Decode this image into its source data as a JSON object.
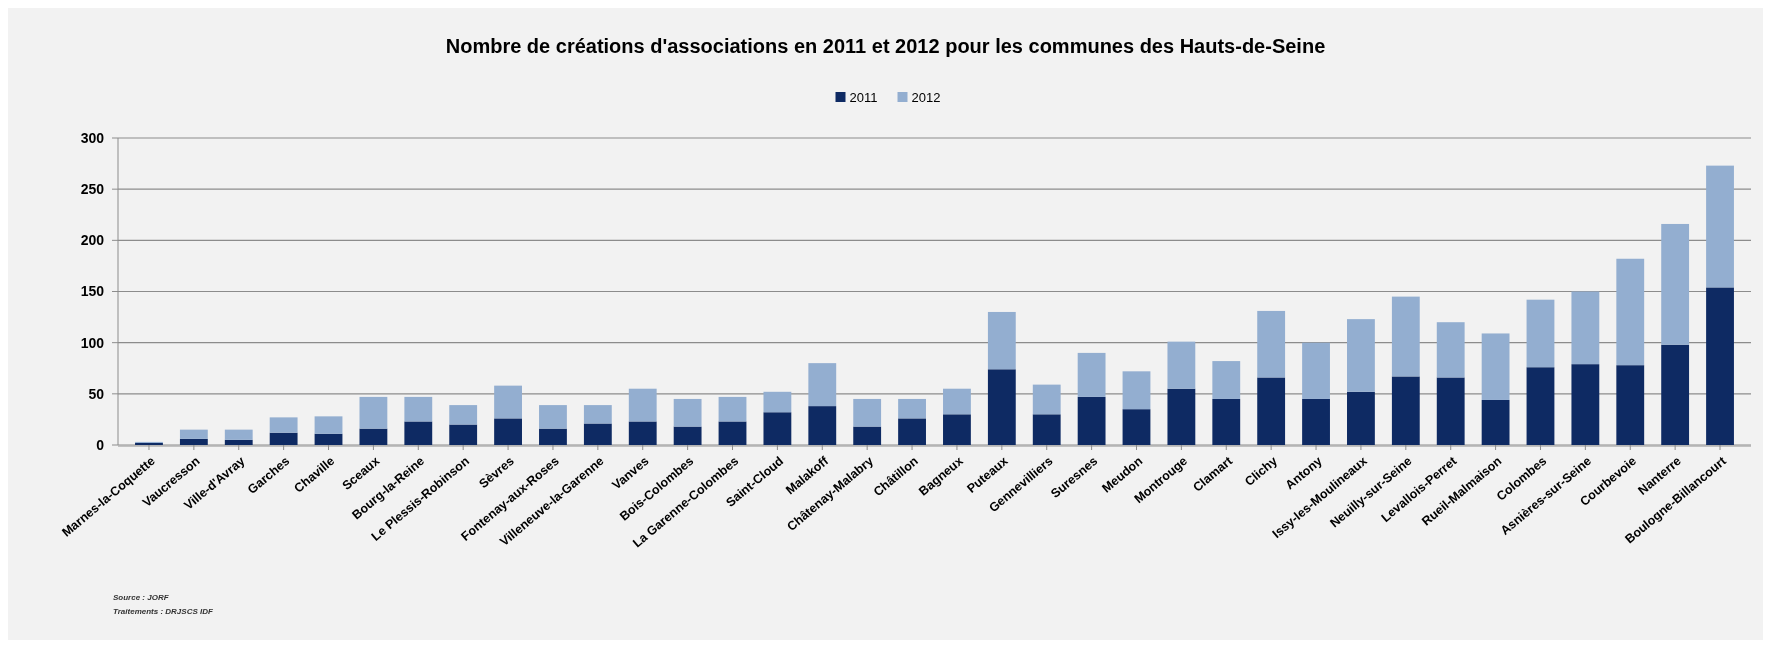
{
  "chart_data": {
    "type": "bar",
    "stacked": true,
    "title": "Nombre de créations d'associations en 2011 et 2012 pour les communes  des Hauts-de-Seine",
    "categories": [
      "Marnes-la-Coquette",
      "Vaucresson",
      "Ville-d'Avray",
      "Garches",
      "Chaville",
      "Sceaux",
      "Bourg-la-Reine",
      "Le Plessis-Robinson",
      "Sèvres",
      "Fontenay-aux-Roses",
      "Villeneuve-la-Garenne",
      "Vanves",
      "Bois-Colombes",
      "La Garenne-Colombes",
      "Saint-Cloud",
      "Malakoff",
      "Châtenay-Malabry",
      "Châtillon",
      "Bagneux",
      "Puteaux",
      "Gennevilliers",
      "Suresnes",
      "Meudon",
      "Montrouge",
      "Clamart",
      "Clichy",
      "Antony",
      "Issy-les-Moulineaux",
      "Neuilly-sur-Seine",
      "Levallois-Perret",
      "Rueil-Malmaison",
      "Colombes",
      "Asnières-sur-Seine",
      "Courbevoie",
      "Nanterre",
      "Boulogne-Billancourt"
    ],
    "series": [
      {
        "name": "2011",
        "color": "#0e2a63",
        "values": [
          2,
          6,
          5,
          12,
          11,
          16,
          23,
          20,
          26,
          16,
          21,
          23,
          18,
          23,
          32,
          38,
          18,
          26,
          30,
          74,
          30,
          47,
          35,
          55,
          45,
          66,
          45,
          52,
          67,
          66,
          44,
          76,
          79,
          78,
          98,
          154
        ]
      },
      {
        "name": "2012",
        "color": "#93aed0",
        "values": [
          1,
          9,
          10,
          15,
          17,
          31,
          24,
          19,
          32,
          23,
          18,
          32,
          27,
          24,
          20,
          42,
          27,
          19,
          25,
          56,
          29,
          43,
          37,
          46,
          37,
          65,
          55,
          71,
          78,
          54,
          65,
          66,
          71,
          104,
          118,
          119
        ]
      }
    ],
    "ylim": [
      0,
      300
    ],
    "yticks": [
      0,
      50,
      100,
      150,
      200,
      250,
      300
    ],
    "grid": "y",
    "legend": "top",
    "annotations": [
      "Source : JORF",
      "Traitements : DRJSCS IDF"
    ]
  }
}
